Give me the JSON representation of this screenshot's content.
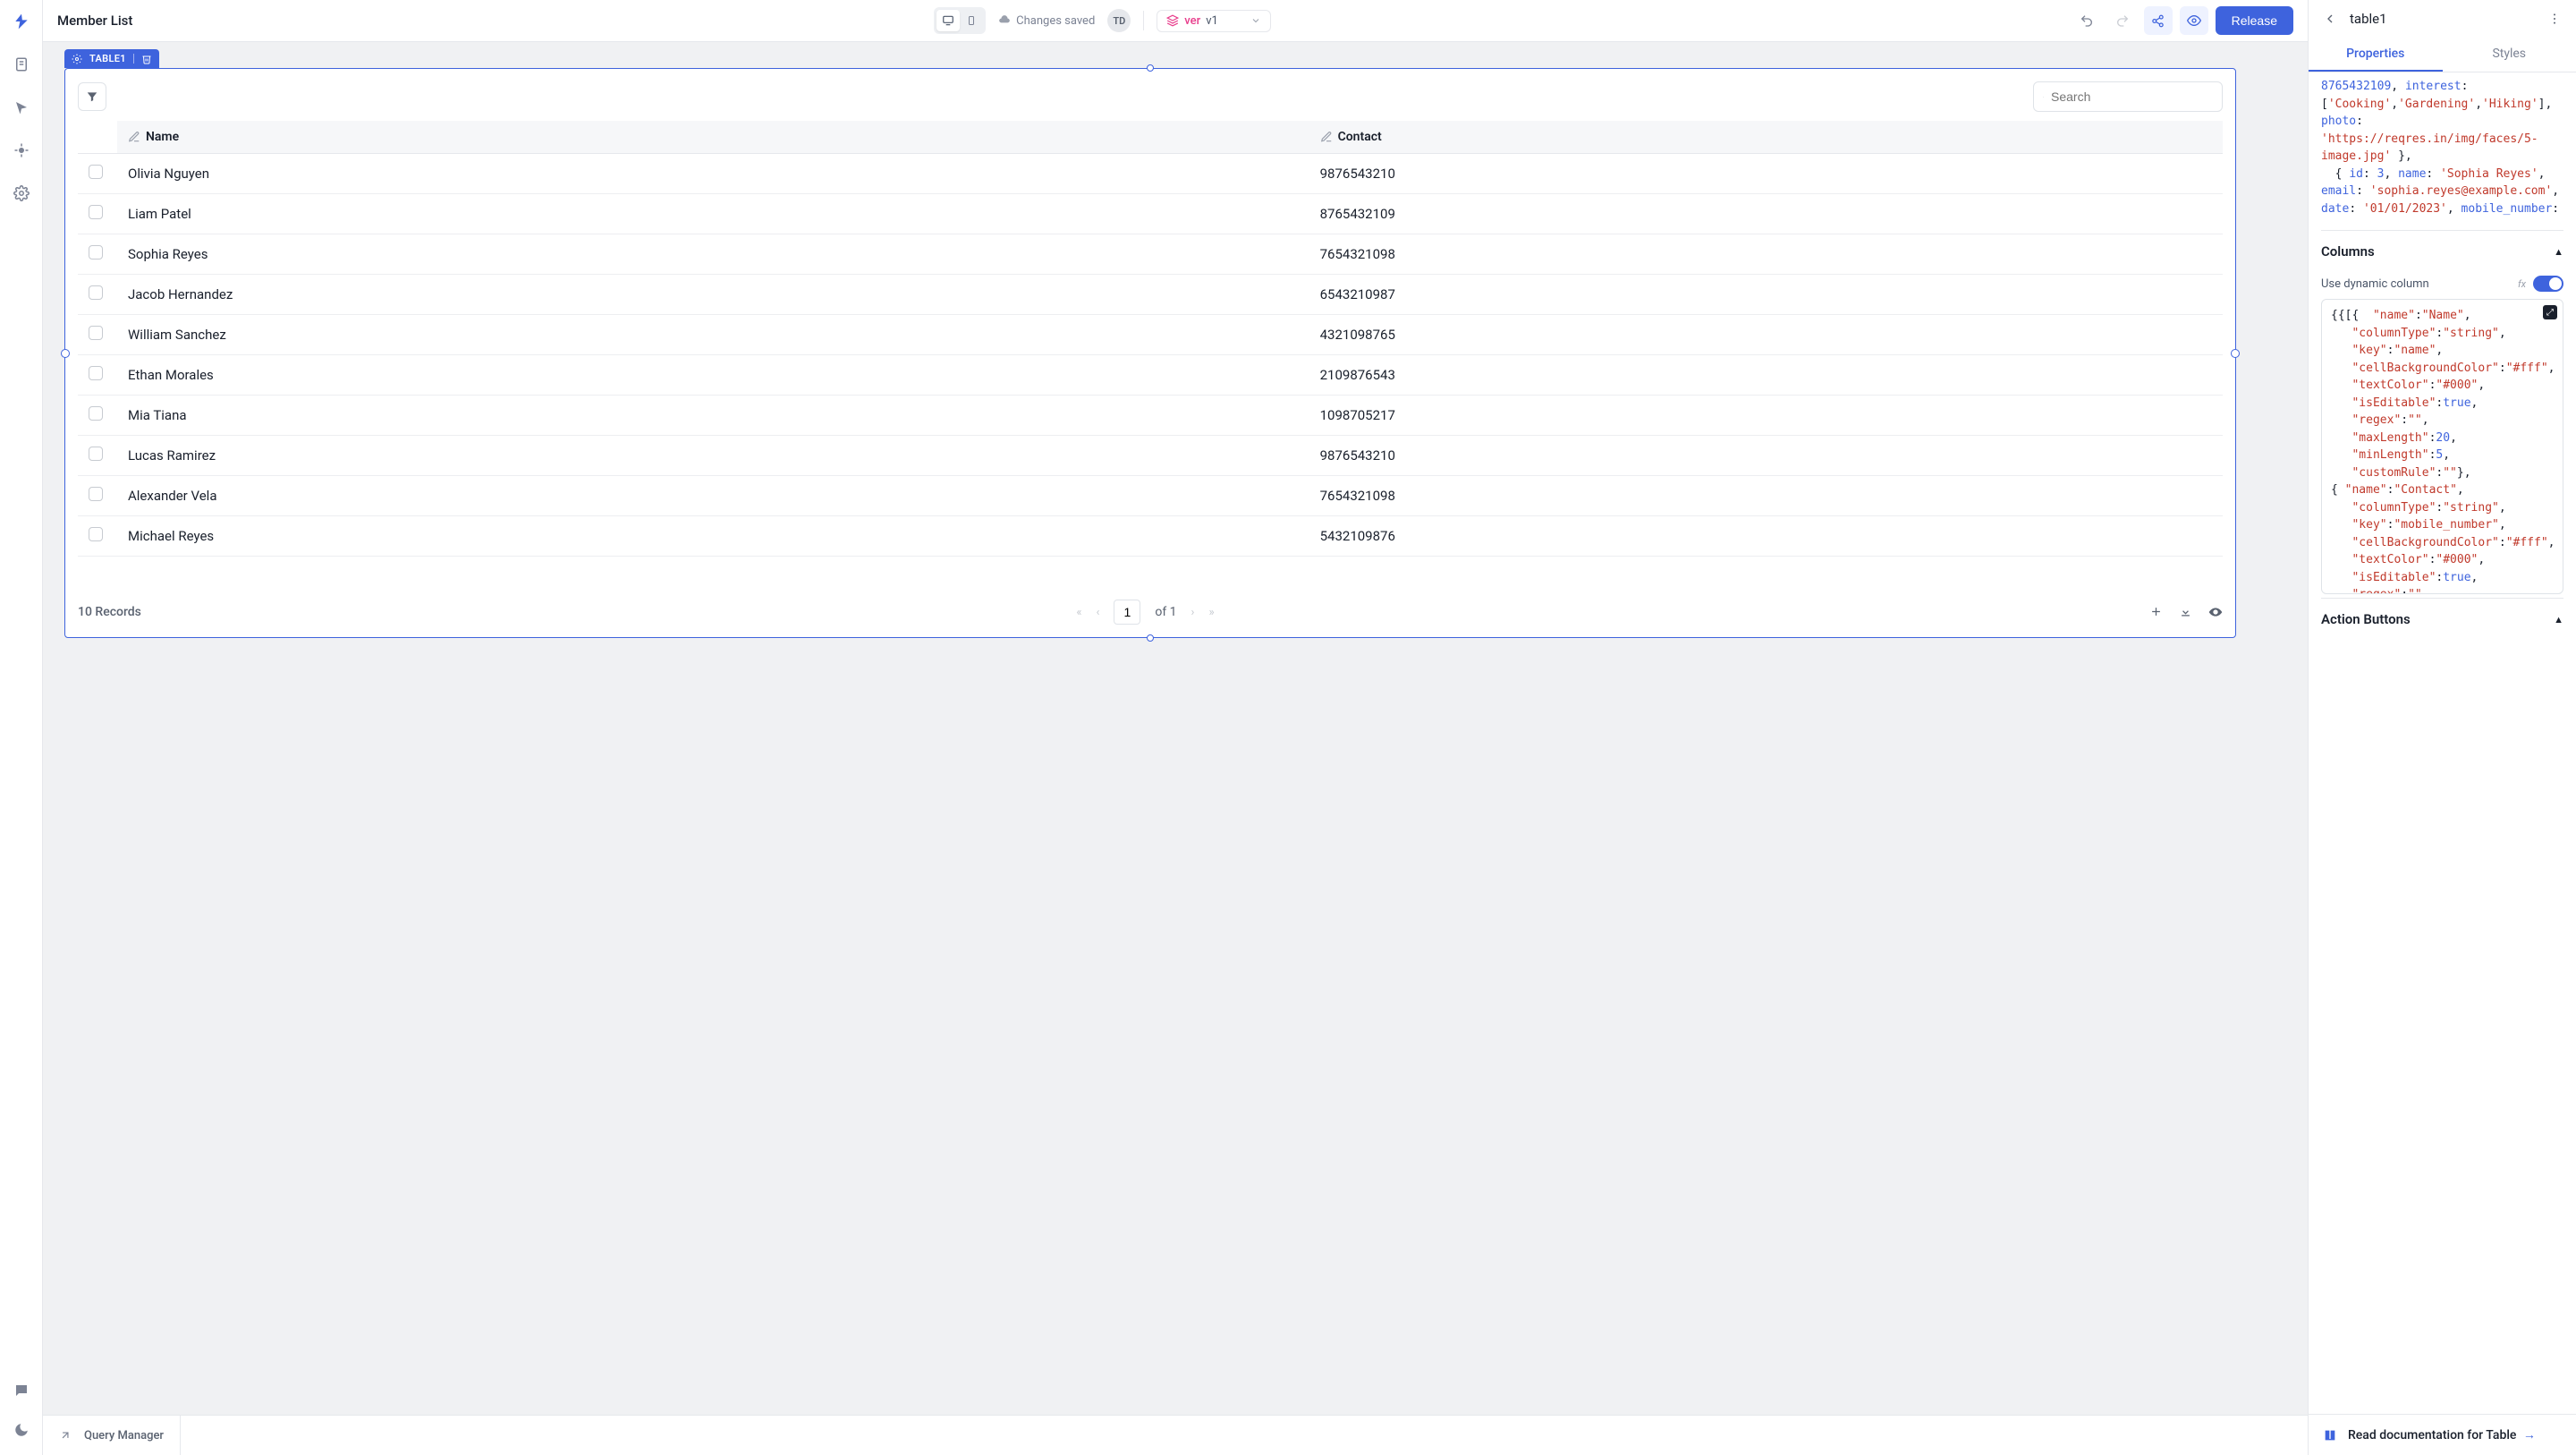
{
  "page_title": "Member List",
  "topbar": {
    "saved_label": "Changes saved",
    "avatar_initials": "TD",
    "ver_label": "ver",
    "ver_value": "v1",
    "release_label": "Release"
  },
  "widget_tag": "TABLE1",
  "search": {
    "placeholder": "Search"
  },
  "columns": [
    {
      "label": "Name"
    },
    {
      "label": "Contact"
    }
  ],
  "rows": [
    {
      "name": "Olivia Nguyen",
      "contact": "9876543210"
    },
    {
      "name": "Liam Patel",
      "contact": "8765432109"
    },
    {
      "name": "Sophia Reyes",
      "contact": "7654321098"
    },
    {
      "name": "Jacob Hernandez",
      "contact": "6543210987"
    },
    {
      "name": "William Sanchez",
      "contact": "4321098765"
    },
    {
      "name": "Ethan Morales",
      "contact": "2109876543"
    },
    {
      "name": "Mia Tiana",
      "contact": "1098705217"
    },
    {
      "name": "Lucas Ramirez",
      "contact": "9876543210"
    },
    {
      "name": "Alexander Vela",
      "contact": "7654321098"
    },
    {
      "name": "Michael Reyes",
      "contact": "5432109876"
    }
  ],
  "footer": {
    "record_count": "10 Records",
    "page": "1",
    "of_label": "of 1"
  },
  "bottom": {
    "query_manager": "Query Manager"
  },
  "right": {
    "title": "table1",
    "tabs": {
      "properties": "Properties",
      "styles": "Styles"
    },
    "columns_label": "Columns",
    "dynamic_label": "Use dynamic column",
    "action_buttons_label": "Action Buttons",
    "doc_label": "Read documentation for Table"
  },
  "colors": {
    "primary": "#3e63dd",
    "pink": "#e83e8c",
    "border": "#e6e8ec",
    "text": "#1a202c",
    "muted": "#7c8394"
  }
}
